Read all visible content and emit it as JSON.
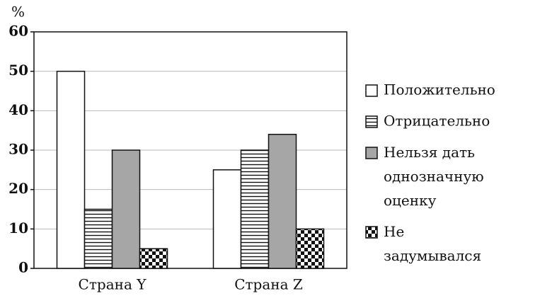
{
  "chart_data": {
    "type": "bar",
    "ylabel": "%",
    "categories": [
      "Страна Y",
      "Страна Z"
    ],
    "series": [
      {
        "name": "Положительно",
        "color": "#ffffff",
        "pattern": "solid",
        "values": [
          50,
          25
        ]
      },
      {
        "name": "Отрицательно",
        "color": "#ffffff",
        "pattern": "hlines",
        "values": [
          15,
          30
        ]
      },
      {
        "name": "Нельзя дать однозначную оценку",
        "color": "#a6a6a6",
        "pattern": "solid",
        "values": [
          30,
          34
        ]
      },
      {
        "name": "Не задумывался",
        "color": "#ffffff",
        "pattern": "checker",
        "values": [
          5,
          10
        ]
      }
    ],
    "ylim": [
      0,
      60
    ],
    "yticks": [
      0,
      10,
      20,
      30,
      40,
      50,
      60
    ],
    "grid": true,
    "legend": "right"
  }
}
